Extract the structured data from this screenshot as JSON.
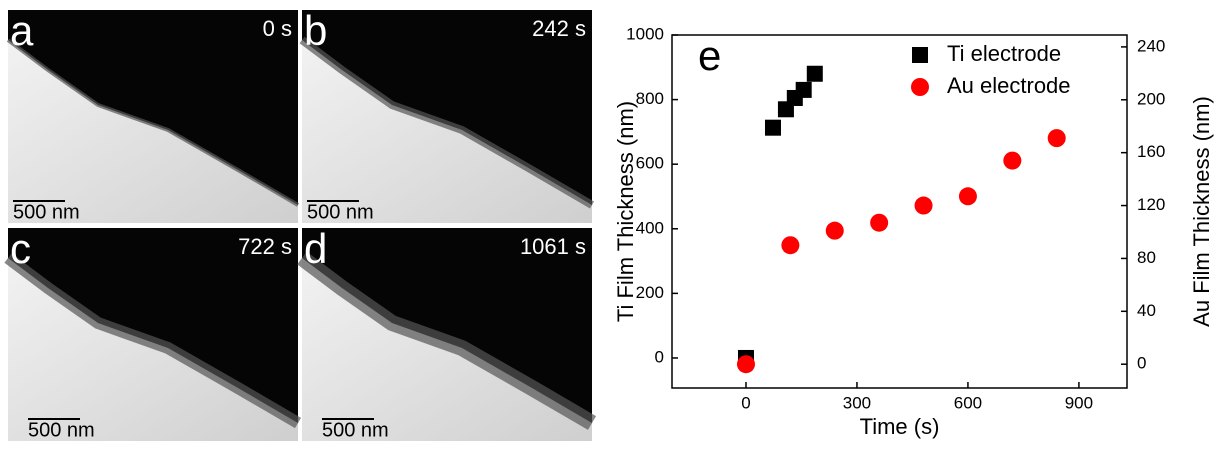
{
  "images": [
    {
      "label": "a",
      "time": "0 s",
      "scale": "500 nm"
    },
    {
      "label": "b",
      "time": "242 s",
      "scale": "500 nm"
    },
    {
      "label": "c",
      "time": "722 s",
      "scale": "500 nm"
    },
    {
      "label": "d",
      "time": "1061 s",
      "scale": "500 nm"
    }
  ],
  "chart_data": {
    "type": "scatter",
    "panel_label": "e",
    "x_label": "Time (s)",
    "y_label": "Ti Film Thickness (nm)",
    "y2_label": "Au Film Thickness (nm)",
    "xlim": [
      -200,
      1030
    ],
    "xticks": [
      0,
      300,
      600,
      900
    ],
    "ylim": [
      -93,
      1000
    ],
    "yticks": [
      0,
      200,
      400,
      600,
      800,
      1000
    ],
    "y2lim": [
      -18,
      249
    ],
    "y2ticks": [
      0,
      40,
      80,
      120,
      160,
      200,
      240
    ],
    "legend": "upper right",
    "series": [
      {
        "name": "Ti electrode",
        "color": "#000000",
        "marker": "square",
        "axis": "y",
        "x": [
          0,
          73,
          108,
          132,
          156,
          186
        ],
        "values": [
          0,
          713,
          770,
          805,
          830,
          880
        ]
      },
      {
        "name": "Au electrode",
        "color": "#ff0000",
        "marker": "circle",
        "axis": "y2",
        "x": [
          0,
          120,
          240,
          360,
          480,
          600,
          720,
          840
        ],
        "values": [
          0,
          90,
          101,
          107,
          120,
          127,
          154,
          171
        ]
      }
    ]
  }
}
